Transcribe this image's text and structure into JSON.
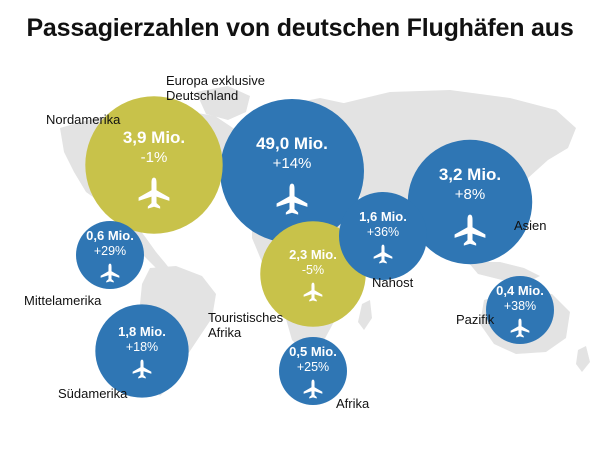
{
  "title": "Passagierzahlen von deutschen Flughäfen aus",
  "colors": {
    "blue": "#2f76b4",
    "olive": "#c8c24a",
    "map": "#e3e3e3",
    "text_on_bubble": "#ffffff"
  },
  "icon": "airplane-icon",
  "chart_data": {
    "type": "bubble",
    "value_unit": "Mio.",
    "items": [
      {
        "region": "Europa exklusive Deutschland",
        "passengers": "49,0 Mio.",
        "change": "+14%",
        "value": 49.0,
        "change_pct": 14,
        "category": "blue"
      },
      {
        "region": "Nordamerika",
        "passengers": "3,9 Mio.",
        "change": "-1%",
        "value": 3.9,
        "change_pct": -1,
        "category": "olive"
      },
      {
        "region": "Asien",
        "passengers": "3,2 Mio.",
        "change": "+8%",
        "value": 3.2,
        "change_pct": 8,
        "category": "blue"
      },
      {
        "region": "Touristisches Afrika",
        "passengers": "2,3 Mio.",
        "change": "-5%",
        "value": 2.3,
        "change_pct": -5,
        "category": "olive"
      },
      {
        "region": "Südamerika",
        "passengers": "1,8 Mio.",
        "change": "+18%",
        "value": 1.8,
        "change_pct": 18,
        "category": "blue"
      },
      {
        "region": "Nahost",
        "passengers": "1,6 Mio.",
        "change": "+36%",
        "value": 1.6,
        "change_pct": 36,
        "category": "blue"
      },
      {
        "region": "Mittelamerika",
        "passengers": "0,6 Mio.",
        "change": "+29%",
        "value": 0.6,
        "change_pct": 29,
        "category": "blue"
      },
      {
        "region": "Afrika",
        "passengers": "0,5 Mio.",
        "change": "+25%",
        "value": 0.5,
        "change_pct": 25,
        "category": "blue"
      },
      {
        "region": "Pazifik",
        "passengers": "0,4 Mio.",
        "change": "+38%",
        "value": 0.4,
        "change_pct": 38,
        "category": "blue"
      }
    ]
  },
  "labels": {
    "europa_line1": "Europa exklusive",
    "europa_line2": "Deutschland",
    "nordamerika": "Nordamerika",
    "asien": "Asien",
    "touristisch_line1": "Touristisches",
    "touristisch_line2": "Afrika",
    "suedamerika": "Südamerika",
    "nahost": "Nahost",
    "mittelamerika": "Mittelamerika",
    "afrika": "Afrika",
    "pazifik": "Pazifik"
  }
}
